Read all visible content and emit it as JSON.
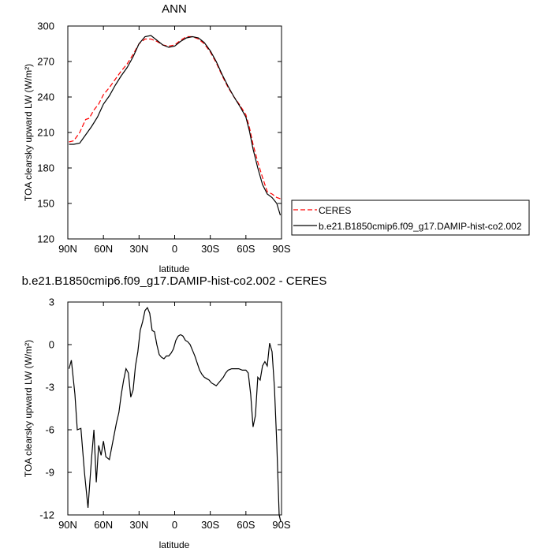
{
  "chart_data": [
    {
      "type": "line",
      "title": "ANN",
      "xlabel": "latitude",
      "ylabel": "TOA clearsky upward LW (W/m²)",
      "ylim": [
        120,
        300
      ],
      "xlim": [
        90,
        -90
      ],
      "x_tick_values": [
        90,
        60,
        30,
        0,
        -30,
        -60,
        -90
      ],
      "x_tick_labels": [
        "90N",
        "60N",
        "30N",
        "0",
        "30S",
        "60S",
        "90S"
      ],
      "y_ticks": [
        120,
        150,
        180,
        210,
        240,
        270,
        300
      ],
      "legend_position": "right",
      "grid": false,
      "series": [
        {
          "name": "CERES",
          "color": "#ff0000",
          "dash": "dashed",
          "x": [
            89,
            85,
            80,
            75,
            72,
            68,
            64,
            60,
            55,
            50,
            45,
            40,
            35,
            30,
            25,
            20,
            15,
            10,
            5,
            0,
            -5,
            -10,
            -15,
            -20,
            -25,
            -30,
            -35,
            -40,
            -45,
            -50,
            -55,
            -60,
            -63,
            -66,
            -70,
            -74,
            -78,
            -82,
            -86,
            -89
          ],
          "y": [
            202,
            203,
            210,
            221,
            222,
            229,
            234,
            242,
            248,
            255,
            262,
            268,
            276,
            285,
            289,
            289,
            287,
            284,
            283,
            284,
            288,
            291,
            291,
            289,
            285,
            278,
            269,
            258,
            248,
            240,
            233,
            225,
            214,
            200,
            185,
            172,
            160,
            158,
            155,
            154
          ]
        },
        {
          "name": "b.e21.B1850cmip6.f09_g17.DAMIP-hist-co2.002",
          "color": "#000000",
          "dash": "solid",
          "x": [
            89,
            85,
            80,
            75,
            70,
            65,
            60,
            55,
            50,
            45,
            40,
            35,
            30,
            25,
            20,
            15,
            10,
            5,
            0,
            -5,
            -10,
            -15,
            -20,
            -25,
            -30,
            -35,
            -40,
            -45,
            -50,
            -55,
            -60,
            -63,
            -66,
            -70,
            -74,
            -78,
            -82,
            -86,
            -89
          ],
          "y": [
            200,
            200,
            201,
            208,
            215,
            223,
            234,
            241,
            250,
            258,
            265,
            274,
            285,
            291,
            292,
            288,
            284,
            282,
            283,
            287,
            290,
            291,
            290,
            286,
            279,
            270,
            259,
            249,
            240,
            232,
            223,
            211,
            196,
            180,
            166,
            158,
            155,
            150,
            140
          ]
        }
      ]
    },
    {
      "type": "line",
      "title": "b.e21.B1850cmip6.f09_g17.DAMIP-hist-co2.002 - CERES",
      "xlabel": "latitude",
      "ylabel": "TOA clearsky upward LW (W/m²)",
      "ylim": [
        -12,
        3
      ],
      "xlim": [
        90,
        -90
      ],
      "x_tick_values": [
        90,
        60,
        30,
        0,
        -30,
        -60,
        -90
      ],
      "x_tick_labels": [
        "90N",
        "60N",
        "30N",
        "0",
        "30S",
        "60S",
        "90S"
      ],
      "y_ticks": [
        3,
        0,
        -3,
        -6,
        -9,
        -12
      ],
      "grid": false,
      "series": [
        {
          "color": "#000000",
          "dash": "solid",
          "x": [
            89,
            87,
            84,
            82,
            79,
            76,
            73,
            70,
            68,
            66,
            64,
            62,
            60,
            58,
            55,
            52,
            49,
            47,
            45,
            43,
            41,
            39,
            37,
            35,
            33,
            31,
            29,
            27,
            25,
            23,
            21,
            19,
            17,
            15,
            13,
            11,
            9,
            7,
            5,
            3,
            1,
            -1,
            -3,
            -5,
            -7,
            -9,
            -11,
            -13,
            -15,
            -17,
            -19,
            -21,
            -23,
            -25,
            -27,
            -29,
            -31,
            -33,
            -35,
            -37,
            -39,
            -41,
            -43,
            -45,
            -48,
            -51,
            -54,
            -57,
            -60,
            -62,
            -64,
            -66,
            -68,
            -70,
            -72,
            -74,
            -76,
            -78,
            -80,
            -82,
            -84,
            -86,
            -88,
            -89.5
          ],
          "y": [
            -1.7,
            -1.1,
            -3.5,
            -6.0,
            -5.9,
            -9.0,
            -11.5,
            -8.0,
            -6.0,
            -9.7,
            -7.1,
            -7.8,
            -6.8,
            -7.9,
            -8.1,
            -6.8,
            -5.5,
            -4.8,
            -3.5,
            -2.5,
            -1.7,
            -2.0,
            -3.7,
            -3.2,
            -1.5,
            -0.5,
            1.0,
            1.6,
            2.4,
            2.6,
            2.2,
            1.0,
            0.9,
            0.0,
            -0.7,
            -0.9,
            -1.0,
            -0.8,
            -0.8,
            -0.6,
            -0.3,
            0.3,
            0.6,
            0.7,
            0.6,
            0.3,
            0.2,
            0.0,
            -0.4,
            -0.8,
            -1.3,
            -1.8,
            -2.1,
            -2.3,
            -2.4,
            -2.5,
            -2.7,
            -2.8,
            -2.9,
            -2.7,
            -2.5,
            -2.3,
            -2.0,
            -1.8,
            -1.7,
            -1.7,
            -1.7,
            -1.8,
            -1.8,
            -2.0,
            -3.5,
            -5.8,
            -5.0,
            -2.3,
            -2.5,
            -1.5,
            -1.2,
            -1.5,
            0.1,
            -0.5,
            -3.0,
            -7.0,
            -12.0,
            -12.5
          ]
        }
      ]
    }
  ]
}
